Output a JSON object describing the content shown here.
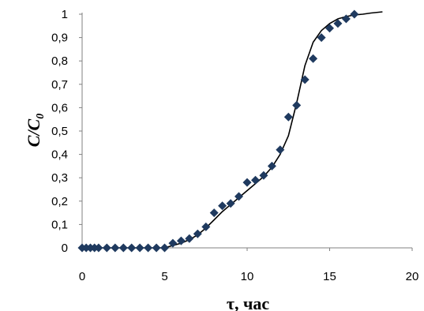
{
  "chart_data": {
    "type": "scatter",
    "xlabel": "τ, час",
    "ylabel": "C/C",
    "ylabel_subscript": "0",
    "xlim": [
      0,
      20
    ],
    "ylim": [
      0,
      1
    ],
    "grid": false,
    "legend": "none",
    "x_ticks": [
      "0",
      "5",
      "10",
      "15",
      "20"
    ],
    "y_ticks": [
      "0",
      "0,1",
      "0,2",
      "0,3",
      "0,4",
      "0,5",
      "0,6",
      "0,7",
      "0,8",
      "0,9",
      "1"
    ],
    "series": [
      {
        "kind": "points",
        "marker": "diamond",
        "color": "#1f3a5f",
        "x": [
          0,
          0.25,
          0.5,
          0.75,
          1,
          1.5,
          2,
          2.5,
          3,
          3.5,
          4,
          4.5,
          5,
          5.5,
          6,
          6.5,
          7,
          7.5,
          8,
          8.5,
          9,
          9.5,
          10,
          10.5,
          11,
          11.5,
          12,
          12.5,
          13,
          13.5,
          14,
          14.5,
          15,
          15.5,
          16,
          16.5
        ],
        "y": [
          0,
          0,
          0,
          0,
          0,
          0,
          0,
          0,
          0,
          0,
          0,
          0,
          0,
          0.02,
          0.03,
          0.04,
          0.06,
          0.09,
          0.15,
          0.18,
          0.19,
          0.22,
          0.28,
          0.29,
          0.31,
          0.35,
          0.42,
          0.56,
          0.61,
          0.72,
          0.81,
          0.9,
          0.94,
          0.96,
          0.98,
          1.0
        ]
      },
      {
        "kind": "line",
        "color": "#000000",
        "x": [
          0,
          5,
          5.5,
          6,
          6.5,
          7,
          7.5,
          8,
          8.5,
          9,
          9.5,
          10,
          10.5,
          11,
          11.5,
          12,
          12.5,
          13,
          13.5,
          14,
          14.5,
          15,
          15.5,
          16,
          16.5,
          17,
          17.5,
          18.2
        ],
        "y": [
          0,
          0,
          0.01,
          0.02,
          0.035,
          0.055,
          0.085,
          0.12,
          0.155,
          0.185,
          0.215,
          0.245,
          0.275,
          0.305,
          0.345,
          0.4,
          0.48,
          0.62,
          0.78,
          0.88,
          0.93,
          0.96,
          0.98,
          0.99,
          0.997,
          1.0,
          1.005,
          1.01
        ]
      }
    ]
  }
}
